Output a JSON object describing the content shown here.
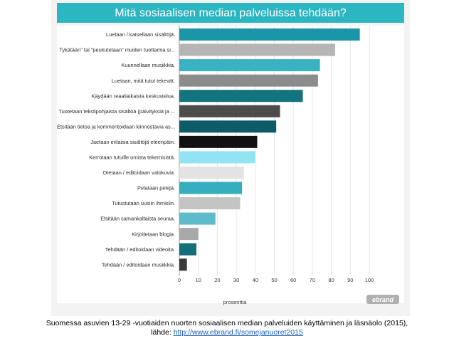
{
  "chart_data": {
    "type": "bar",
    "orientation": "horizontal",
    "title": "Mitä sosiaalisen median palveluissa tehdään?",
    "xlabel": "prosenttia",
    "ylabel": "",
    "xlim": [
      0,
      100
    ],
    "xticks": [
      0,
      10,
      20,
      30,
      40,
      50,
      60,
      70,
      80,
      90,
      100
    ],
    "grid": true,
    "categories": [
      "Luetaan / katsellaan sisältöjä.",
      "Tykätään\" tai \"peukutetaan\" muiden tuottamia si...",
      "Kuunnellaan musiikkia.",
      "Luetaan, mitä tutut tekevät.",
      "Käydään reaaliaikaista keskustelua.",
      "Tuotetaan tekstipohjaista sisältöä (päivityksiä ja ...",
      "Etsitään tietoa ja kommentoidaan kiinnostavia as...",
      "Jaetaan erilaisia sisältöjä eteenpäin.",
      "Kerrotaan tutuille omista tekemisistä.",
      "Otetaan / editoidaan valokuvia.",
      "Pelataan pelejä.",
      "Tutustutaan uusiin ihmisiin.",
      "Etsitään samankaltaista seuraa.",
      "Kirjoitetaan blogia.",
      "Tehdään / editoidaan videoita.",
      "Tehdään / editoidaan musiikkia."
    ],
    "values": [
      95,
      82,
      74,
      73,
      65,
      53,
      51,
      41,
      40,
      34,
      33,
      32,
      19,
      10,
      9,
      4
    ],
    "colors": [
      "#1a96a8",
      "#b5b5b5",
      "#3ab2c2",
      "#8c8c8c",
      "#13737f",
      "#4c4c4c",
      "#0d5b66",
      "#111111",
      "#92e4f4",
      "#e3e3e3",
      "#36aebf",
      "#c4c4c4",
      "#5dbbca",
      "#a8a8a8",
      "#156e7a",
      "#3a3a3a"
    ]
  },
  "logo": {
    "text": "ebrand"
  },
  "caption": {
    "line1": "Suomessa asuvien 13-29 -vuotiaiden nuorten sosiaalisen median palveluiden käyttäminen ja läsnäolo (2015),",
    "source_prefix": "lähde:",
    "source_link": "http://www.ebrand.fi/somejanuoret2015"
  },
  "theme": {
    "title_bar": "#2cb6c1",
    "panel_bg": "#ffffff",
    "axis_bg": "#f3f3f3",
    "logo_bg": "#b0b0b0"
  }
}
